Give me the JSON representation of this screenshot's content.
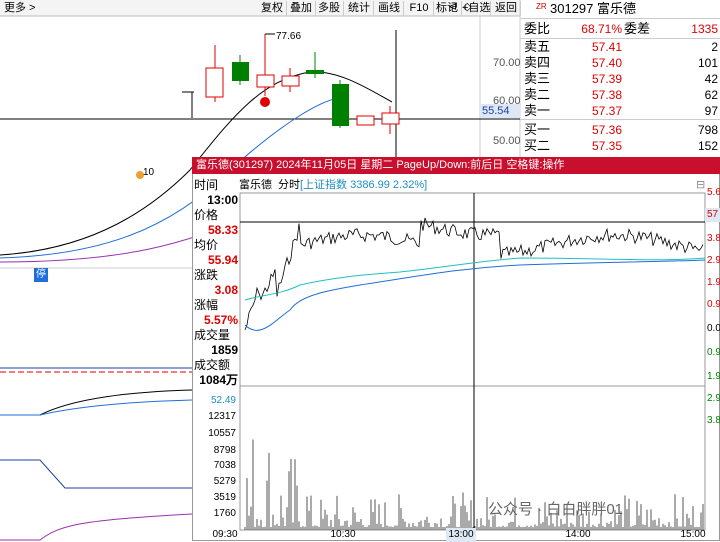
{
  "toolbar": {
    "more": "更多 >",
    "buttons": [
      "复权",
      "叠加",
      "多股",
      "统计",
      "画线",
      "F10",
      "标记",
      "+自选",
      "返回"
    ]
  },
  "main_chart": {
    "labels": [
      "77.66",
      "10"
    ],
    "price_axis": [
      "70.00",
      "60.00",
      "55.54",
      "50.00"
    ],
    "flag": "停"
  },
  "quote": {
    "code_prefix": "ZR",
    "title": "301297 富乐德",
    "ratio_label": "委比",
    "ratio": "68.71%",
    "diff_label": "委差",
    "diff": "1335",
    "rows": [
      {
        "label": "卖五",
        "price": "57.41",
        "volume": "2"
      },
      {
        "label": "卖四",
        "price": "57.40",
        "volume": "101"
      },
      {
        "label": "卖三",
        "price": "57.39",
        "volume": "42"
      },
      {
        "label": "卖二",
        "price": "57.38",
        "volume": "62"
      },
      {
        "label": "卖一",
        "price": "57.37",
        "volume": "97"
      },
      {
        "label": "买一",
        "price": "57.36",
        "volume": "798"
      },
      {
        "label": "买二",
        "price": "57.35",
        "volume": "152"
      }
    ]
  },
  "popup": {
    "title": "富乐德(301297)  2024年11月05日 星期二 PageUp/Down:前后日 空格键:操作",
    "info": [
      {
        "label": "时间",
        "value": "13:00"
      },
      {
        "label": "价格",
        "value": "58.33"
      },
      {
        "label": "均价",
        "value": "55.94"
      },
      {
        "label": "涨跌",
        "value": "3.08"
      },
      {
        "label": "涨幅",
        "value": "5.57%"
      },
      {
        "label": "成交量",
        "value": "1859"
      },
      {
        "label": "成交额",
        "value": "1084万"
      }
    ],
    "header": {
      "name": "富乐德",
      "mode": "分时",
      "index": "[上证指数 3386.99 2.32%]"
    },
    "volume_axis": [
      "52.49",
      "12317",
      "10557",
      "8798",
      "7038",
      "5279",
      "3519",
      "1760"
    ],
    "time_axis": [
      "09:30",
      "10:30",
      "13:00",
      "14:00",
      "15:00"
    ],
    "right_axis": [
      "5.6",
      "57",
      "3.8",
      "2.9",
      "1.9",
      "0.9",
      "0.0",
      "0.9",
      "1.9",
      "2.9",
      "3.8"
    ]
  },
  "watermark": "公众号 · 白白胖胖01"
}
